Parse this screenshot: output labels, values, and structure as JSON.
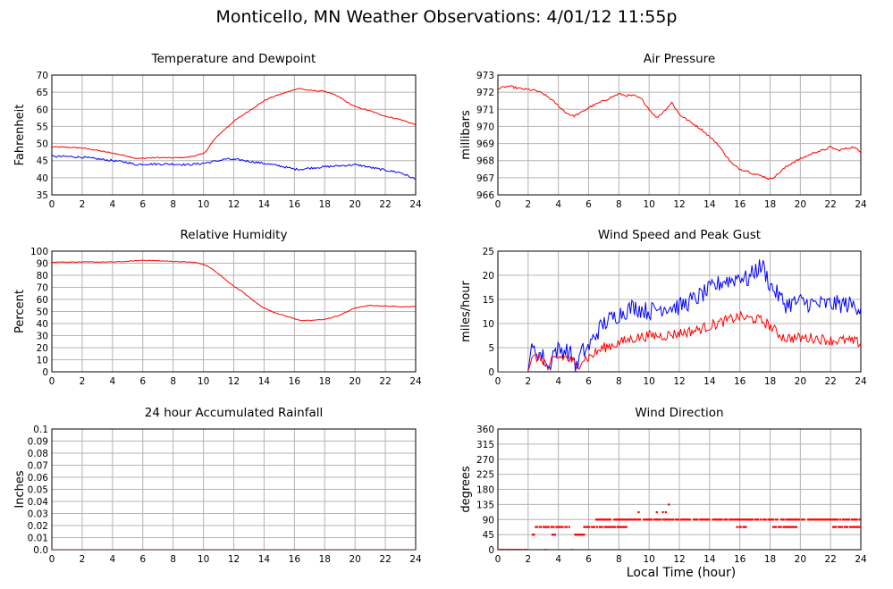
{
  "page": {
    "title": "Monticello, MN Weather Observations: 4/01/12 11:55p",
    "xlabel": "Local Time (hour)"
  },
  "colors": {
    "red": "#ff0000",
    "blue": "#0000ff",
    "grid": "#b4b4b4",
    "frame": "#000000"
  },
  "chart_data": [
    {
      "id": "temp",
      "type": "line",
      "title": "Temperature and Dewpoint",
      "xlabel": "",
      "ylabel": "Fahrenheit",
      "xlim": [
        0,
        24
      ],
      "ylim": [
        35,
        70
      ],
      "xticks": [
        0,
        2,
        4,
        6,
        8,
        10,
        12,
        14,
        16,
        18,
        20,
        22,
        24
      ],
      "yticks": [
        35,
        40,
        45,
        50,
        55,
        60,
        65,
        70
      ],
      "grid": true,
      "series": [
        {
          "color": "#ff0000",
          "noise": 0.15,
          "x": [
            0,
            1,
            2,
            3,
            4,
            5,
            5.6,
            6,
            7,
            8,
            9,
            9.5,
            10,
            10.3,
            10.6,
            11,
            11.5,
            12,
            12.5,
            13,
            13.5,
            14,
            14.5,
            15,
            15.5,
            16,
            16.3,
            17,
            18,
            18.5,
            19,
            19.5,
            20,
            21,
            22,
            23,
            24
          ],
          "y": [
            49,
            48.9,
            48.7,
            48,
            47.2,
            46.3,
            45.6,
            45.7,
            45.9,
            45.8,
            46,
            46.5,
            47,
            48.5,
            50.5,
            52.5,
            54.5,
            56.5,
            58,
            59.5,
            61,
            62.5,
            63.5,
            64.3,
            65,
            65.8,
            66.1,
            65.5,
            65.3,
            64.5,
            63.5,
            62,
            60.8,
            59.5,
            58,
            57,
            55.5
          ]
        },
        {
          "color": "#0000ff",
          "noise": 0.3,
          "x": [
            0,
            1,
            2,
            3,
            4,
            5,
            5.5,
            6,
            7,
            8,
            9,
            10,
            11,
            11.5,
            12,
            12.5,
            13,
            14,
            15,
            16,
            16.5,
            17,
            18,
            19,
            20,
            20.5,
            21,
            22,
            23,
            24
          ],
          "y": [
            46.2,
            46.2,
            46,
            45.5,
            45,
            44.5,
            43.8,
            44,
            44,
            44,
            43.8,
            44.2,
            45,
            45.5,
            45.3,
            45.2,
            44.8,
            44.2,
            43.5,
            42.5,
            42.5,
            42.8,
            43.2,
            43.5,
            43.8,
            43.5,
            43,
            42.2,
            41.5,
            39.5
          ]
        }
      ]
    },
    {
      "id": "pressure",
      "type": "line",
      "title": "Air Pressure",
      "xlabel": "",
      "ylabel": "millibars",
      "xlim": [
        0,
        24
      ],
      "ylim": [
        966,
        973
      ],
      "xticks": [
        0,
        2,
        4,
        6,
        8,
        10,
        12,
        14,
        16,
        18,
        20,
        22,
        24
      ],
      "yticks": [
        966,
        967,
        968,
        969,
        970,
        971,
        972,
        973
      ],
      "grid": true,
      "series": [
        {
          "color": "#ff0000",
          "noise": 0.06,
          "x": [
            0,
            0.7,
            1.5,
            2,
            2.5,
            3,
            3.5,
            4,
            4.5,
            5,
            5.5,
            6,
            6.5,
            7,
            7.5,
            8,
            8.5,
            9,
            9.5,
            10,
            10.5,
            11,
            11.5,
            12,
            12.5,
            13,
            13.5,
            14,
            14.5,
            15,
            15.5,
            16,
            16.5,
            17,
            17.5,
            18,
            18.5,
            19,
            19.5,
            20,
            20.5,
            21,
            21.5,
            22,
            22.5,
            23,
            23.5,
            24
          ],
          "y": [
            972.2,
            972.35,
            972.2,
            972.15,
            972.1,
            971.9,
            971.6,
            971.2,
            970.8,
            970.6,
            970.8,
            971.1,
            971.3,
            971.5,
            971.7,
            971.9,
            971.8,
            971.8,
            971.6,
            971,
            970.5,
            970.9,
            971.4,
            970.7,
            970.4,
            970.1,
            969.8,
            969.4,
            969,
            968.4,
            967.8,
            967.5,
            967.4,
            967.2,
            967.1,
            966.9,
            967.2,
            967.6,
            967.9,
            968.1,
            968.3,
            968.5,
            968.6,
            968.8,
            968.6,
            968.7,
            968.8,
            968.5
          ]
        }
      ]
    },
    {
      "id": "humidity",
      "type": "line",
      "title": "Relative Humidity",
      "xlabel": "",
      "ylabel": "Percent",
      "xlim": [
        0,
        24
      ],
      "ylim": [
        0,
        100
      ],
      "xticks": [
        0,
        2,
        4,
        6,
        8,
        10,
        12,
        14,
        16,
        18,
        20,
        22,
        24
      ],
      "yticks": [
        0,
        10,
        20,
        30,
        40,
        50,
        60,
        70,
        80,
        90,
        100
      ],
      "grid": true,
      "series": [
        {
          "color": "#ff0000",
          "noise": 0.3,
          "x": [
            0,
            1,
            2,
            3,
            4,
            5,
            5.5,
            6,
            7,
            8,
            9,
            9.5,
            10,
            10.5,
            11,
            11.5,
            12,
            12.5,
            13,
            13.5,
            14,
            14.5,
            15,
            15.5,
            16,
            16.5,
            17,
            18,
            18.5,
            19,
            19.5,
            20,
            21,
            22,
            23,
            24
          ],
          "y": [
            91,
            91,
            91,
            91,
            91,
            91.5,
            92,
            92.5,
            92,
            91.5,
            91,
            90.5,
            89,
            86,
            81,
            76,
            71,
            67,
            62,
            57,
            53,
            50,
            48,
            46,
            44,
            42.5,
            42.5,
            43.5,
            45,
            47,
            50,
            53,
            55,
            54.5,
            54,
            54
          ]
        }
      ]
    },
    {
      "id": "wind",
      "type": "line",
      "title": "Wind Speed and Peak Gust",
      "xlabel": "",
      "ylabel": "miles/hour",
      "xlim": [
        0,
        24
      ],
      "ylim": [
        0,
        25
      ],
      "xticks": [
        0,
        2,
        4,
        6,
        8,
        10,
        12,
        14,
        16,
        18,
        20,
        22,
        24
      ],
      "yticks": [
        0,
        5,
        10,
        15,
        20,
        25
      ],
      "grid": true,
      "series": [
        {
          "color": "#0000ff",
          "noise": 1.9,
          "x": [
            0,
            1,
            2,
            2.1,
            2.5,
            3,
            3.4,
            3.6,
            4,
            4.5,
            5,
            5.2,
            5.5,
            6,
            6.5,
            7,
            8,
            9,
            10,
            11,
            12,
            13,
            14,
            15,
            15.5,
            16,
            16.5,
            17,
            17.5,
            18,
            18.5,
            19,
            20,
            21,
            22,
            23,
            24
          ],
          "y": [
            0,
            0,
            0,
            4,
            4.5,
            3,
            0.5,
            4,
            4.5,
            4.5,
            3,
            0.5,
            4,
            5,
            8,
            10,
            12,
            13.5,
            12.5,
            13.5,
            13.5,
            15,
            17,
            19,
            19,
            20,
            19,
            21,
            22,
            18,
            16,
            14,
            14.5,
            14,
            14,
            14,
            13.5
          ]
        },
        {
          "color": "#ff0000",
          "noise": 1.1,
          "x": [
            0,
            1,
            2,
            2.1,
            2.5,
            3,
            3.4,
            3.6,
            4,
            4.5,
            5,
            5.2,
            5.5,
            6,
            6.5,
            7,
            8,
            9,
            10,
            11,
            12,
            13,
            14,
            15,
            15.5,
            16,
            16.5,
            17,
            17.5,
            18,
            18.5,
            19,
            20,
            21,
            22,
            23,
            24
          ],
          "y": [
            0,
            0,
            0,
            2,
            3,
            2.5,
            0.3,
            2.5,
            3,
            3,
            2,
            0.3,
            2.5,
            3,
            4,
            5,
            6,
            7,
            7.5,
            7.5,
            8,
            8.5,
            9.5,
            10.5,
            11,
            11.5,
            11,
            11,
            10.5,
            9.5,
            8,
            7,
            7,
            7,
            6.5,
            6.5,
            6
          ]
        }
      ]
    },
    {
      "id": "rain",
      "type": "line",
      "title": "24 hour Accumulated Rainfall",
      "xlabel": "",
      "ylabel": "Inches",
      "xlim": [
        0,
        24
      ],
      "ylim": [
        0,
        0.1
      ],
      "xticks": [
        0,
        2,
        4,
        6,
        8,
        10,
        12,
        14,
        16,
        18,
        20,
        22,
        24
      ],
      "yticks": [
        0.0,
        0.01,
        0.02,
        0.03,
        0.04,
        0.05,
        0.06,
        0.07,
        0.08,
        0.09,
        0.1
      ],
      "ytick_labels": [
        "0.0",
        "0.01",
        "0.02",
        "0.03",
        "0.04",
        "0.05",
        "0.06",
        "0.07",
        "0.08",
        "0.09",
        "0.1"
      ],
      "grid": true,
      "series": [
        {
          "color": "#ff0000",
          "noise": 0,
          "x": [
            0,
            24
          ],
          "y": [
            0,
            0
          ]
        }
      ]
    },
    {
      "id": "direction",
      "type": "scatter",
      "title": "Wind Direction",
      "xlabel": "",
      "ylabel": "degrees",
      "xlim": [
        0,
        24
      ],
      "ylim": [
        0,
        360
      ],
      "xticks": [
        0,
        2,
        4,
        6,
        8,
        10,
        12,
        14,
        16,
        18,
        20,
        22,
        24
      ],
      "yticks": [
        0,
        45,
        90,
        135,
        180,
        225,
        270,
        315,
        360
      ],
      "grid": true,
      "series": [
        {
          "color": "#ff0000",
          "segments": [
            {
              "x": [
                0,
                2.05
              ],
              "y": 0
            },
            {
              "x": [
                2.3,
                2.55
              ],
              "y": 45
            },
            {
              "x": [
                2.5,
                4.8
              ],
              "y": 68
            },
            {
              "x": [
                3.6,
                3.8
              ],
              "y": 45
            },
            {
              "x": [
                3.1,
                3.2
              ],
              "y": 0
            },
            {
              "x": [
                4.9,
                5.0
              ],
              "y": 0
            },
            {
              "x": [
                5.1,
                5.7
              ],
              "y": 45
            },
            {
              "x": [
                5.7,
                7.8
              ],
              "y": 68
            },
            {
              "x": [
                6.5,
                10.5
              ],
              "y": 90
            },
            {
              "x": [
                7.9,
                8.5
              ],
              "y": 68
            },
            {
              "x": [
                10.6,
                11.4
              ],
              "y": 90
            },
            {
              "x": [
                11.5,
                24.0
              ],
              "y": 90
            },
            {
              "x": [
                15.8,
                16.6
              ],
              "y": 68
            },
            {
              "x": [
                18.2,
                19.8
              ],
              "y": 68
            },
            {
              "x": [
                22.0,
                24.0
              ],
              "y": 68
            }
          ],
          "points": [
            {
              "x": 9.3,
              "y": 112
            },
            {
              "x": 10.9,
              "y": 112
            },
            {
              "x": 11.1,
              "y": 112
            },
            {
              "x": 11.3,
              "y": 135
            },
            {
              "x": 10.5,
              "y": 112
            }
          ]
        }
      ]
    }
  ]
}
